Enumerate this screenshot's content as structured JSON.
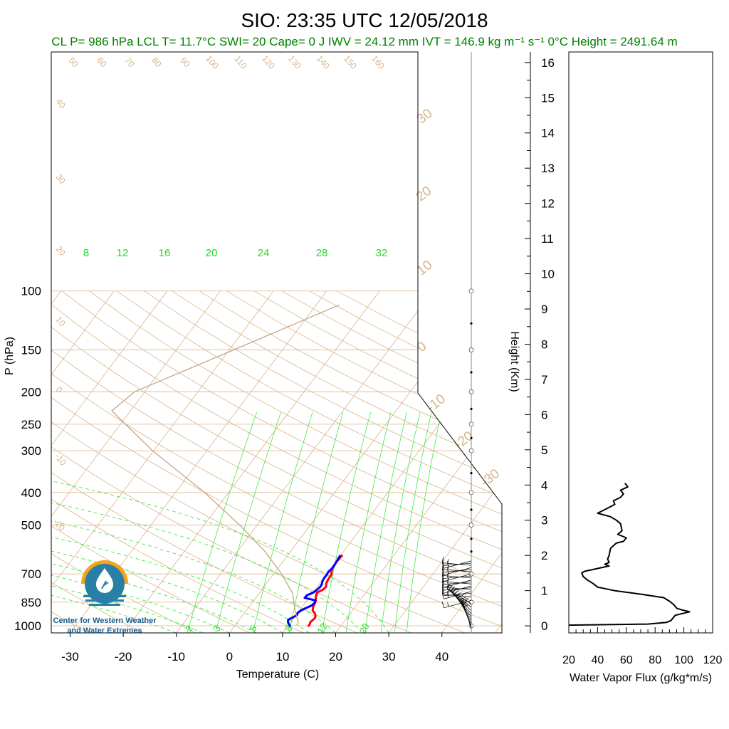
{
  "title": "SIO: 23:35 UTC 12/05/2018",
  "stats_line": "CL P= 986 hPa  LCL T= 11.7°C  SWI= 20  Cape= 0 J  IWV = 24.12 mm  IVT = 146.9 kg m⁻¹ s⁻¹  0°C Height = 2491.64 m",
  "logo": {
    "line1": "Center for Western Weather",
    "line2": "and Water Extremes"
  },
  "colors": {
    "background_line": "#d8b48c",
    "mixing_line": "#2ee62e",
    "temperature": "#ff0000",
    "dewpoint": "#0000ff",
    "flux": "#000000",
    "stats_text": "#008000",
    "logo_orange": "#f5a31a",
    "logo_blue": "#2a7fa6"
  },
  "chart_data": [
    {
      "type": "line",
      "name": "skew-t",
      "xlabel": "Temperature (C)",
      "ylabel": "P (hPa)",
      "xlim": [
        -34,
        47
      ],
      "ylim": [
        1050,
        100
      ],
      "y_scale": "log",
      "skew_lines": true,
      "x_ticks": [
        -30,
        -20,
        -10,
        0,
        10,
        20,
        30,
        40
      ],
      "y_ticks": [
        100,
        150,
        200,
        250,
        300,
        400,
        500,
        700,
        850,
        1000
      ],
      "mixing_ratio_labels_top": [
        "8",
        "12",
        "16",
        "20",
        "24",
        "28",
        "32"
      ],
      "mixing_ratio_labels_bottom": [
        "2",
        "3",
        "5",
        "8",
        "12",
        "20"
      ],
      "adiabat_labels_left": [
        "50",
        "60",
        "70",
        "80",
        "90",
        "100",
        "110",
        "120",
        "130",
        "140",
        "150",
        "160",
        "40",
        "30",
        "20",
        "10",
        "0",
        "-10",
        "-20"
      ],
      "isotherm_labels_right": [
        "30",
        "20",
        "10",
        "0",
        "-10",
        "-20",
        "-30"
      ],
      "series": [
        {
          "name": "Temperature",
          "p": [
            1005,
            990,
            975,
            960,
            945,
            930,
            915,
            900,
            885,
            870,
            855,
            840,
            825,
            810,
            795,
            780,
            765,
            750,
            735,
            720,
            705,
            690,
            675,
            660,
            645,
            630,
            615
          ],
          "t": [
            13.9,
            13.9,
            13.7,
            13.9,
            14.0,
            13.7,
            13.2,
            12.5,
            12.2,
            12.0,
            11.9,
            11.7,
            11.3,
            11.0,
            10.8,
            11.5,
            11.7,
            11.3,
            11.1,
            11.0,
            11.0,
            10.6,
            10.3,
            10.2,
            10.1,
            10.2,
            10.3
          ]
        },
        {
          "name": "Dewpoint",
          "p": [
            1005,
            990,
            975,
            960,
            945,
            930,
            915,
            900,
            885,
            870,
            855,
            840,
            825,
            810,
            795,
            780,
            765,
            750,
            735,
            720,
            705,
            690,
            675,
            660,
            645,
            630,
            615
          ],
          "t": [
            10.6,
            10.0,
            9.5,
            9.2,
            9.7,
            10.2,
            10.0,
            10.3,
            10.9,
            11.6,
            11.8,
            11.6,
            9.2,
            9.3,
            10.1,
            10.4,
            10.6,
            10.5,
            10.2,
            10.1,
            10.1,
            10.0,
            10.2,
            10.2,
            10.1,
            10.0,
            9.9
          ]
        },
        {
          "name": "Parcel",
          "p": [
            986,
            900,
            800,
            700,
            600,
            500,
            400,
            300,
            228,
            200,
            150,
            110
          ],
          "t": [
            11.7,
            9.2,
            6.3,
            1.5,
            -4.8,
            -13.3,
            -24.5,
            -40.2,
            -53.5,
            -51.9,
            -39.2,
            -25.6
          ]
        }
      ],
      "wind_barbs_pressures": [
        640,
        650,
        660,
        670,
        680,
        690,
        700,
        710,
        720,
        730,
        740,
        750,
        760,
        770,
        780,
        790,
        800,
        820,
        840,
        860,
        880,
        900,
        920,
        940,
        960,
        980,
        1000,
        1010,
        1020
      ]
    },
    {
      "type": "line",
      "name": "water-vapor-flux",
      "xlabel": "Water Vapor Flux (g/kg*m/s)",
      "ylabel": "Height (Km)",
      "xlim": [
        20,
        120
      ],
      "ylim": [
        -0.2,
        16.3
      ],
      "x_ticks": [
        20,
        40,
        60,
        80,
        100,
        120
      ],
      "y_ticks": [
        0,
        1,
        2,
        3,
        4,
        5,
        6,
        7,
        8,
        9,
        10,
        11,
        12,
        13,
        14,
        15,
        16
      ],
      "series": [
        {
          "name": "Flux",
          "height_km": [
            0.02,
            0.05,
            0.1,
            0.15,
            0.2,
            0.3,
            0.4,
            0.45,
            0.5,
            0.6,
            0.7,
            0.8,
            0.9,
            1.0,
            1.1,
            1.2,
            1.3,
            1.4,
            1.5,
            1.55,
            1.7,
            1.75,
            1.8,
            1.9,
            2.0,
            2.2,
            2.35,
            2.4,
            2.5,
            2.6,
            2.7,
            2.9,
            3.0,
            3.1,
            3.2,
            3.3,
            3.45,
            3.55,
            3.65,
            3.75,
            3.85,
            3.95,
            4.05
          ],
          "flux": [
            20.0,
            75.0,
            88.0,
            91.0,
            92.0,
            94.0,
            104.0,
            99.0,
            95.0,
            93.0,
            90.0,
            86.0,
            70.0,
            52.0,
            40.0,
            37.0,
            33.0,
            30.0,
            29.0,
            31.0,
            48.0,
            45.0,
            48.0,
            47.0,
            48.0,
            49.0,
            53.0,
            58.0,
            60.0,
            54.0,
            57.0,
            56.0,
            53.0,
            49.0,
            40.0,
            45.0,
            52.0,
            51.0,
            56.0,
            58.0,
            56.0,
            61.0,
            59.0
          ]
        }
      ]
    }
  ]
}
